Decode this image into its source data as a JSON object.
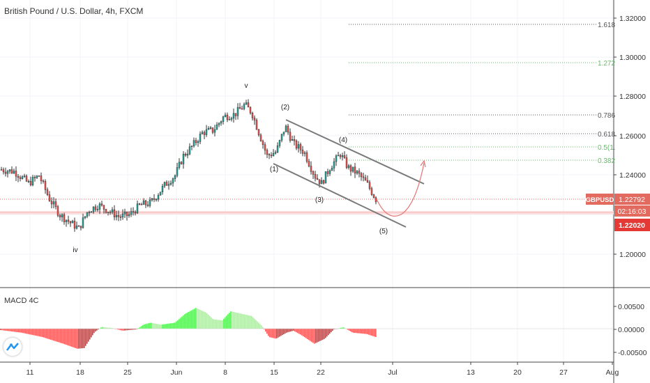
{
  "header": {
    "symbol_title": "British Pound / U.S. Dollar, 4h, FXCM"
  },
  "macd": {
    "label": "MACD 4C",
    "ticks": [
      "0.00500",
      "0.00000",
      "-0.00500"
    ]
  },
  "price_axis": {
    "ticks": [
      "1.32000",
      "1.30000",
      "1.28000",
      "1.26000",
      "1.24000",
      "1.20000"
    ]
  },
  "time_axis": {
    "labels": [
      "11",
      "18",
      "25",
      "Jun",
      "8",
      "15",
      "22",
      "Jul",
      "13",
      "20",
      "27",
      "Aug"
    ]
  },
  "price_tags": {
    "symbol": "GBPUSD",
    "last_price": "1.22792",
    "countdown": "02:16:03",
    "support_price": "1.22020"
  },
  "fib_levels": [
    {
      "label": "1.618",
      "color": "#555555"
    },
    {
      "label": "1.272",
      "color": "#66bb6a"
    },
    {
      "label": "0.786",
      "color": "#555555"
    },
    {
      "label": "0.618",
      "color": "#555555"
    },
    {
      "label": "0.5(1.",
      "color": "#66bb6a"
    },
    {
      "label": "0.382",
      "color": "#66bb6a"
    }
  ],
  "wave_labels": [
    "v",
    "(2)",
    "(1)",
    "(4)",
    "(3)",
    "(5)",
    "iv"
  ],
  "colors": {
    "bull": "#26a69a",
    "bear": "#ef5350",
    "last_price_tag": "#e26a5e",
    "support_tag": "#e53935",
    "macd_bright_green": "#5cf25c",
    "macd_pale_green": "#b2e8a8",
    "macd_bright_red": "#ff5a5a",
    "macd_dark_red": "#b04a4a",
    "forecast_arrow": "#e57373",
    "channel": "#7a7a7a"
  },
  "chart_data": {
    "type": "candlestick",
    "instrument": "British Pound / U.S. Dollar",
    "timeframe": "4h",
    "price_range": [
      1.18,
      1.325
    ],
    "path_key_points": [
      {
        "when": "May 8",
        "close": 1.243
      },
      {
        "when": "May 11",
        "close": 1.236
      },
      {
        "when": "May 18",
        "close": 1.213
      },
      {
        "when": "May 21",
        "close": 1.225
      },
      {
        "when": "May 25",
        "close": 1.219
      },
      {
        "when": "May 27",
        "close": 1.226
      },
      {
        "when": "Jun 1",
        "close": 1.25
      },
      {
        "when": "Jun 4",
        "close": 1.262
      },
      {
        "when": "Jun 8",
        "close": 1.27
      },
      {
        "when": "Jun 10",
        "close": 1.276
      },
      {
        "when": "Jun 15",
        "close": 1.25
      },
      {
        "when": "Jun 17",
        "close": 1.265
      },
      {
        "when": "Jun 19",
        "close": 1.252
      },
      {
        "when": "Jun 22",
        "close": 1.236
      },
      {
        "when": "Jun 24",
        "close": 1.251
      },
      {
        "when": "Jun 26",
        "close": 1.24
      },
      {
        "when": "Jun 29",
        "close": 1.2279
      }
    ],
    "last_close": 1.22792,
    "support": 1.2202,
    "macd_histogram_range": [
      -0.007,
      0.0075
    ]
  }
}
